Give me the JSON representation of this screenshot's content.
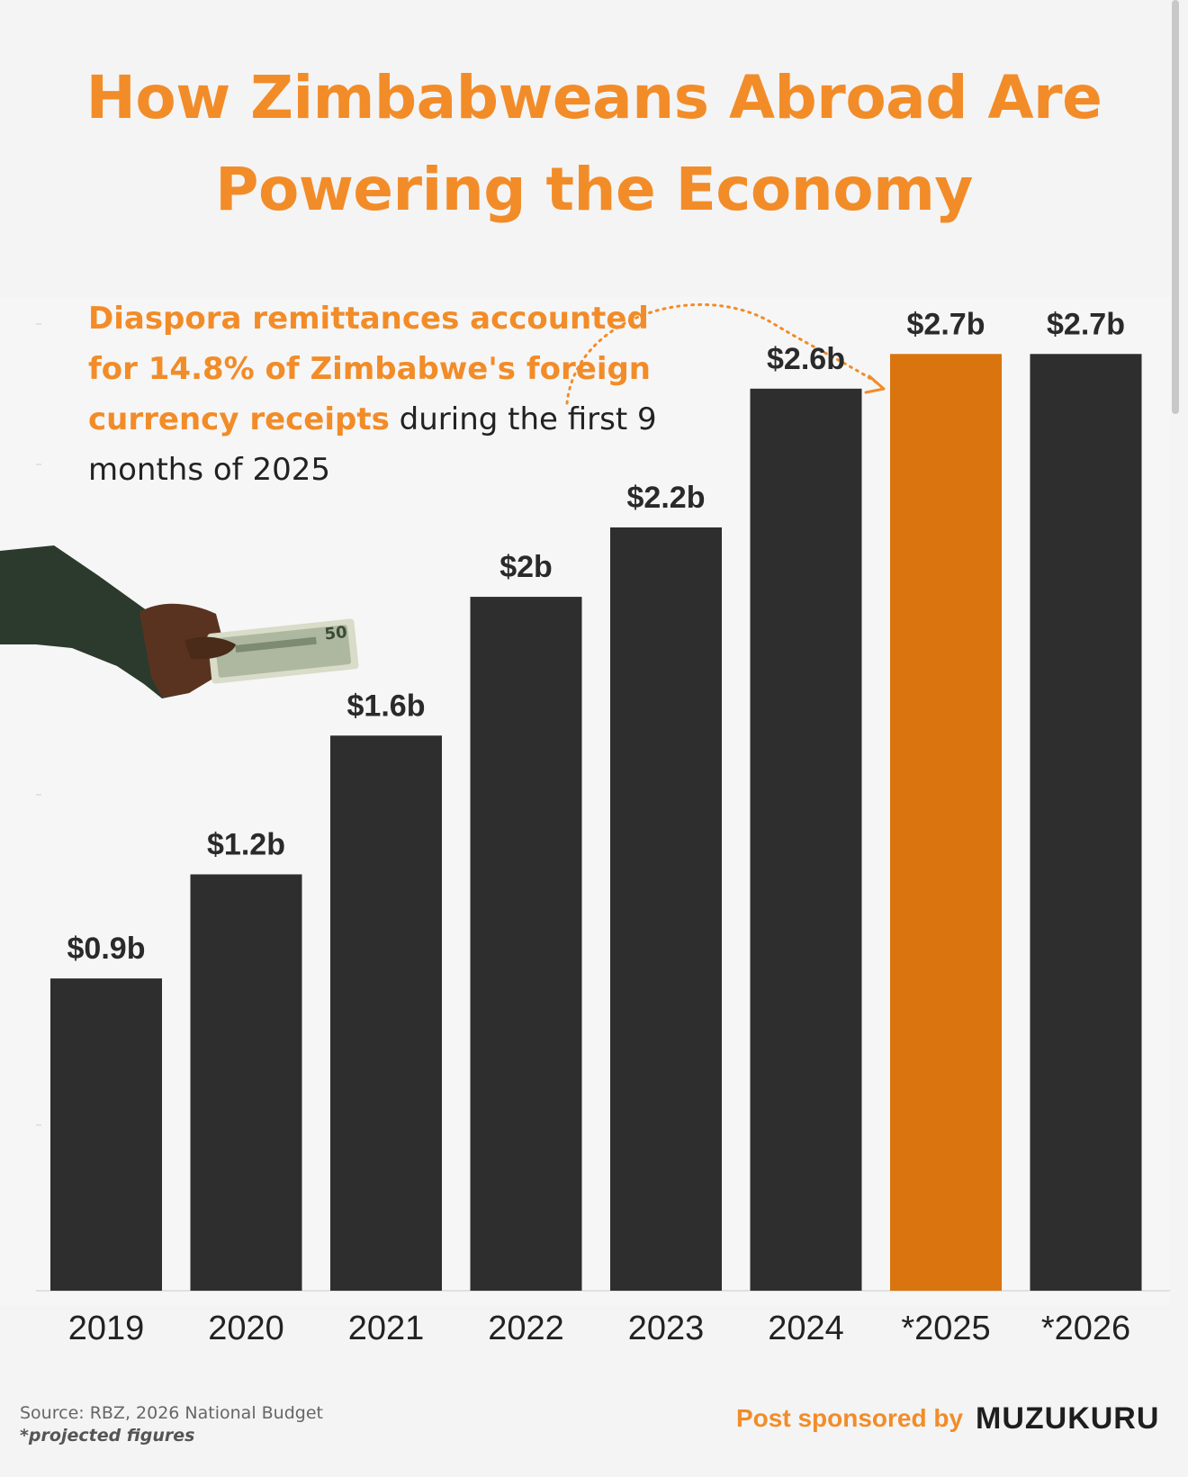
{
  "header": {
    "title_line1": "How Zimbabweans Abroad Are",
    "title_line2": "Powering the Economy"
  },
  "annotation": {
    "highlight": "Diaspora remittances accounted for 14.8% of Zimbabwe's foreign currency receipts",
    "rest": " during the first 9 months of 2025"
  },
  "footer": {
    "source": "Source: RBZ, 2026 National Budget",
    "footnote": "*projected figures",
    "sponsor_label": "Post sponsored by",
    "sponsor_brand": "MUZUKURU"
  },
  "colors": {
    "bar": "#2e2e2e",
    "highlight_bar": "#d9740f",
    "accent_text": "#f28c28"
  },
  "chart_data": {
    "type": "bar",
    "title": "How Zimbabweans Abroad Are Powering the Economy",
    "xlabel": "",
    "ylabel": "",
    "categories": [
      "2019",
      "2020",
      "2021",
      "2022",
      "2023",
      "2024",
      "*2025",
      "*2026"
    ],
    "values": [
      0.9,
      1.2,
      1.6,
      2.0,
      2.2,
      2.6,
      2.7,
      2.7
    ],
    "value_labels": [
      "$0.9b",
      "$1.2b",
      "$1.6b",
      "$2b",
      "$2.2b",
      "$2.6b",
      "$2.7b",
      "$2.7b"
    ],
    "highlight_index": 6,
    "ylim": [
      0,
      2.75
    ],
    "grid": false,
    "legend": "none"
  }
}
